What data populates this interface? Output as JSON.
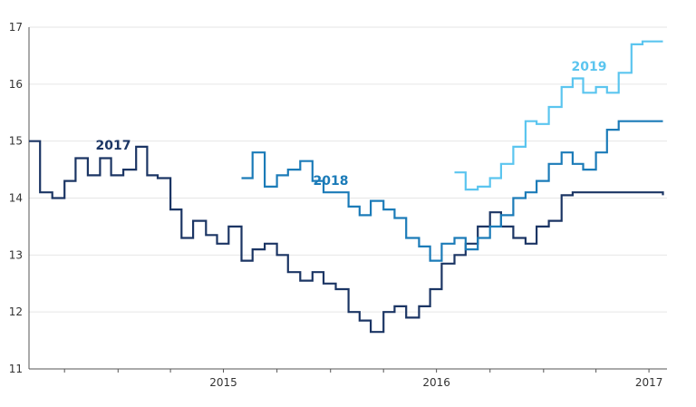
{
  "chart_data": {
    "type": "line",
    "title": "",
    "xlabel": "",
    "ylabel": "",
    "x_axis_labels": [
      "2015",
      "2016",
      "2017"
    ],
    "ylim": [
      11,
      17
    ],
    "yticks": [
      11,
      12,
      13,
      14,
      15,
      16,
      17
    ],
    "grid": "horizontal",
    "legend": "inline labels",
    "colors": {
      "2017": "#1b3564",
      "2018": "#1b7bb8",
      "2019": "#5bc5ef"
    },
    "series": [
      {
        "name": "2017",
        "x": [
          "2014-08-01",
          "2014-08-20",
          "2014-09-10",
          "2014-10-01",
          "2014-10-20",
          "2014-11-10",
          "2014-12-01",
          "2014-12-20",
          "2015-01-10",
          "2015-02-01",
          "2015-02-20",
          "2015-03-10",
          "2015-04-01",
          "2015-04-20",
          "2015-05-10",
          "2015-06-01",
          "2015-06-20",
          "2015-07-10",
          "2015-08-01",
          "2015-08-20",
          "2015-09-10",
          "2015-10-01",
          "2015-10-20",
          "2015-11-10",
          "2015-12-01",
          "2015-12-20",
          "2016-01-10",
          "2016-02-01",
          "2016-02-20",
          "2016-03-10",
          "2016-04-01",
          "2016-04-20",
          "2016-05-10",
          "2016-06-01",
          "2016-06-20",
          "2016-07-10",
          "2016-08-01",
          "2016-08-20",
          "2016-09-10",
          "2016-10-01",
          "2016-10-20",
          "2016-11-10",
          "2016-12-01",
          "2016-12-20",
          "2017-01-10",
          "2017-02-01",
          "2017-02-20",
          "2017-03-10",
          "2017-04-01",
          "2017-04-20",
          "2017-05-10",
          "2017-06-01",
          "2017-06-20",
          "2017-07-10",
          "2017-07-25"
        ],
        "values": [
          15.0,
          14.1,
          14.0,
          14.3,
          14.7,
          14.4,
          14.7,
          14.4,
          14.5,
          14.9,
          14.4,
          14.35,
          13.8,
          13.3,
          13.6,
          13.35,
          13.2,
          13.5,
          12.9,
          13.1,
          13.2,
          13.0,
          12.7,
          12.55,
          12.7,
          12.5,
          12.4,
          12.0,
          11.85,
          11.65,
          12.0,
          12.1,
          11.9,
          12.1,
          12.4,
          12.85,
          13.0,
          13.2,
          13.5,
          13.75,
          13.5,
          13.3,
          13.2,
          13.5,
          13.6,
          14.05,
          14.1,
          14.1,
          14.1,
          14.1,
          14.1,
          14.1,
          14.1,
          14.1,
          14.05
        ]
      },
      {
        "name": "2018",
        "x": [
          "2015-08-01",
          "2015-08-20",
          "2015-09-10",
          "2015-10-01",
          "2015-10-20",
          "2015-11-10",
          "2015-12-01",
          "2015-12-20",
          "2016-01-10",
          "2016-02-01",
          "2016-02-20",
          "2016-03-10",
          "2016-04-01",
          "2016-04-20",
          "2016-05-10",
          "2016-06-01",
          "2016-06-20",
          "2016-07-10",
          "2016-08-01",
          "2016-08-20",
          "2016-09-10",
          "2016-10-01",
          "2016-10-20",
          "2016-11-10",
          "2016-12-01",
          "2016-12-20",
          "2017-01-10",
          "2017-02-01",
          "2017-02-20",
          "2017-03-10",
          "2017-04-01",
          "2017-04-20",
          "2017-05-10",
          "2017-06-01",
          "2017-06-20",
          "2017-07-10",
          "2017-07-25"
        ],
        "values": [
          14.35,
          14.8,
          14.2,
          14.4,
          14.5,
          14.65,
          14.3,
          14.1,
          14.1,
          13.85,
          13.7,
          13.95,
          13.8,
          13.65,
          13.3,
          13.15,
          12.9,
          13.2,
          13.3,
          13.1,
          13.3,
          13.5,
          13.7,
          14.0,
          14.1,
          14.3,
          14.6,
          14.8,
          14.6,
          14.5,
          14.8,
          15.2,
          15.35,
          15.35,
          15.35,
          15.35,
          15.35
        ]
      },
      {
        "name": "2019",
        "x": [
          "2016-08-01",
          "2016-08-20",
          "2016-09-10",
          "2016-10-01",
          "2016-10-20",
          "2016-11-10",
          "2016-12-01",
          "2016-12-20",
          "2017-01-10",
          "2017-02-01",
          "2017-02-20",
          "2017-03-10",
          "2017-04-01",
          "2017-04-20",
          "2017-05-10",
          "2017-06-01",
          "2017-06-20",
          "2017-07-10",
          "2017-07-25"
        ],
        "values": [
          14.45,
          14.15,
          14.2,
          14.35,
          14.6,
          14.9,
          15.35,
          15.3,
          15.6,
          15.95,
          16.1,
          15.85,
          15.95,
          15.85,
          16.2,
          16.7,
          16.75,
          16.75,
          16.75
        ]
      }
    ]
  }
}
